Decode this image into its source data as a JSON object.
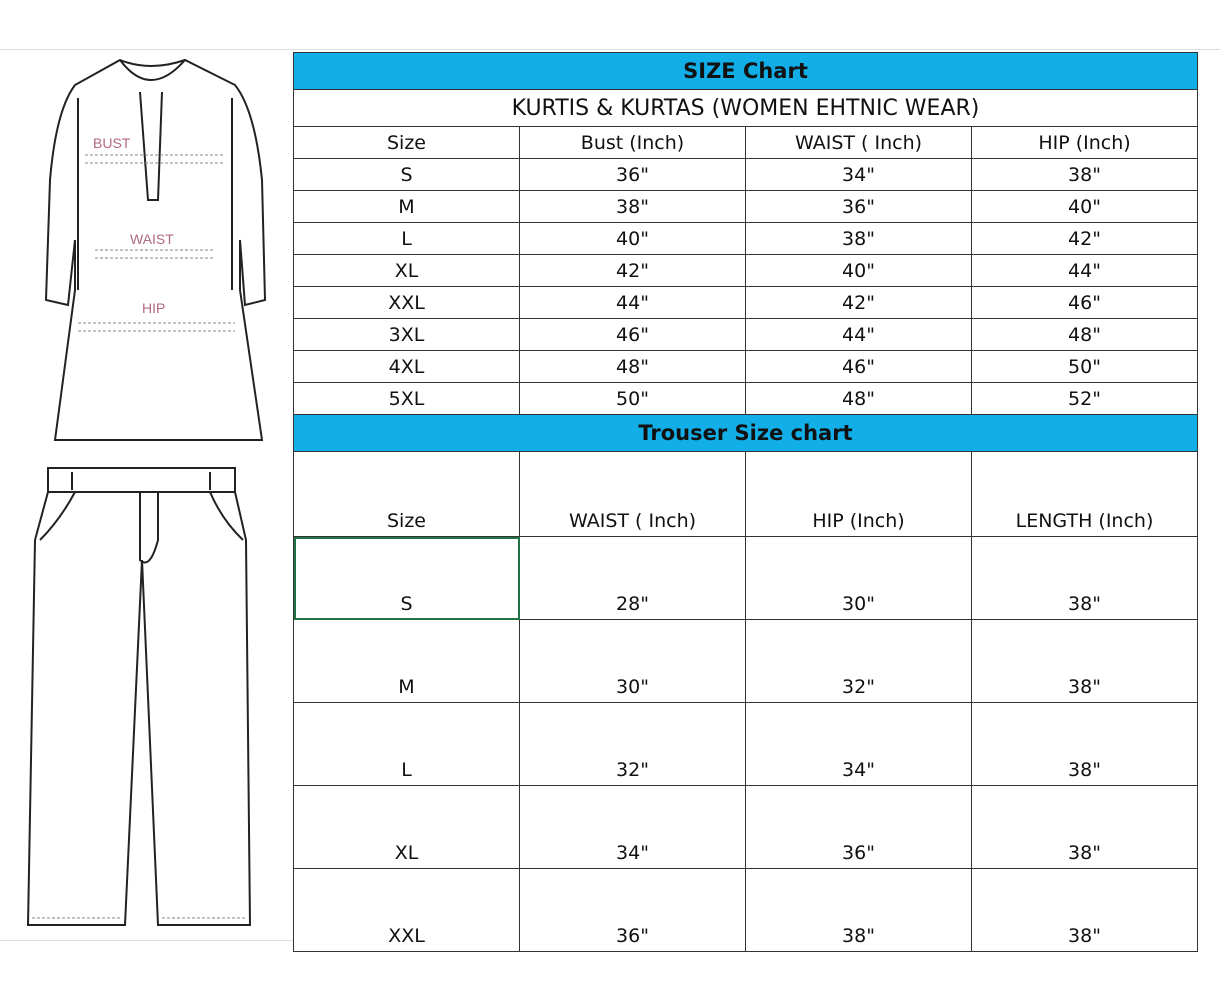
{
  "illustration": {
    "kurta_labels": {
      "bust": "BUST",
      "waist": "WAIST",
      "hip": "HIP"
    }
  },
  "colors": {
    "header_bar": "#12aee8",
    "selected_cell_border": "#217346"
  },
  "kurta": {
    "banner": "SIZE Chart",
    "title": "KURTIS & KURTAS (WOMEN EHTNIC WEAR)",
    "headers": [
      "Size",
      "Bust (Inch)",
      "WAIST ( Inch)",
      "HIP (Inch)"
    ],
    "rows": [
      [
        "S",
        "36\"",
        "34\"",
        "38\""
      ],
      [
        "M",
        "38\"",
        "36\"",
        "40\""
      ],
      [
        "L",
        "40\"",
        "38\"",
        "42\""
      ],
      [
        "XL",
        "42\"",
        "40\"",
        "44\""
      ],
      [
        "XXL",
        "44\"",
        "42\"",
        "46\""
      ],
      [
        "3XL",
        "46\"",
        "44\"",
        "48\""
      ],
      [
        "4XL",
        "48\"",
        "46\"",
        "50\""
      ],
      [
        "5XL",
        "50\"",
        "48\"",
        "52\""
      ]
    ]
  },
  "trouser": {
    "banner": "Trouser Size chart",
    "headers": [
      "Size",
      "WAIST ( Inch)",
      "HIP (Inch)",
      "LENGTH (Inch)"
    ],
    "rows": [
      [
        "S",
        "28\"",
        "30\"",
        "38\""
      ],
      [
        "M",
        "30\"",
        "32\"",
        "38\""
      ],
      [
        "L",
        "32\"",
        "34\"",
        "38\""
      ],
      [
        "XL",
        "34\"",
        "36\"",
        "38\""
      ],
      [
        "XXL",
        "36\"",
        "38\"",
        "38\""
      ]
    ]
  }
}
